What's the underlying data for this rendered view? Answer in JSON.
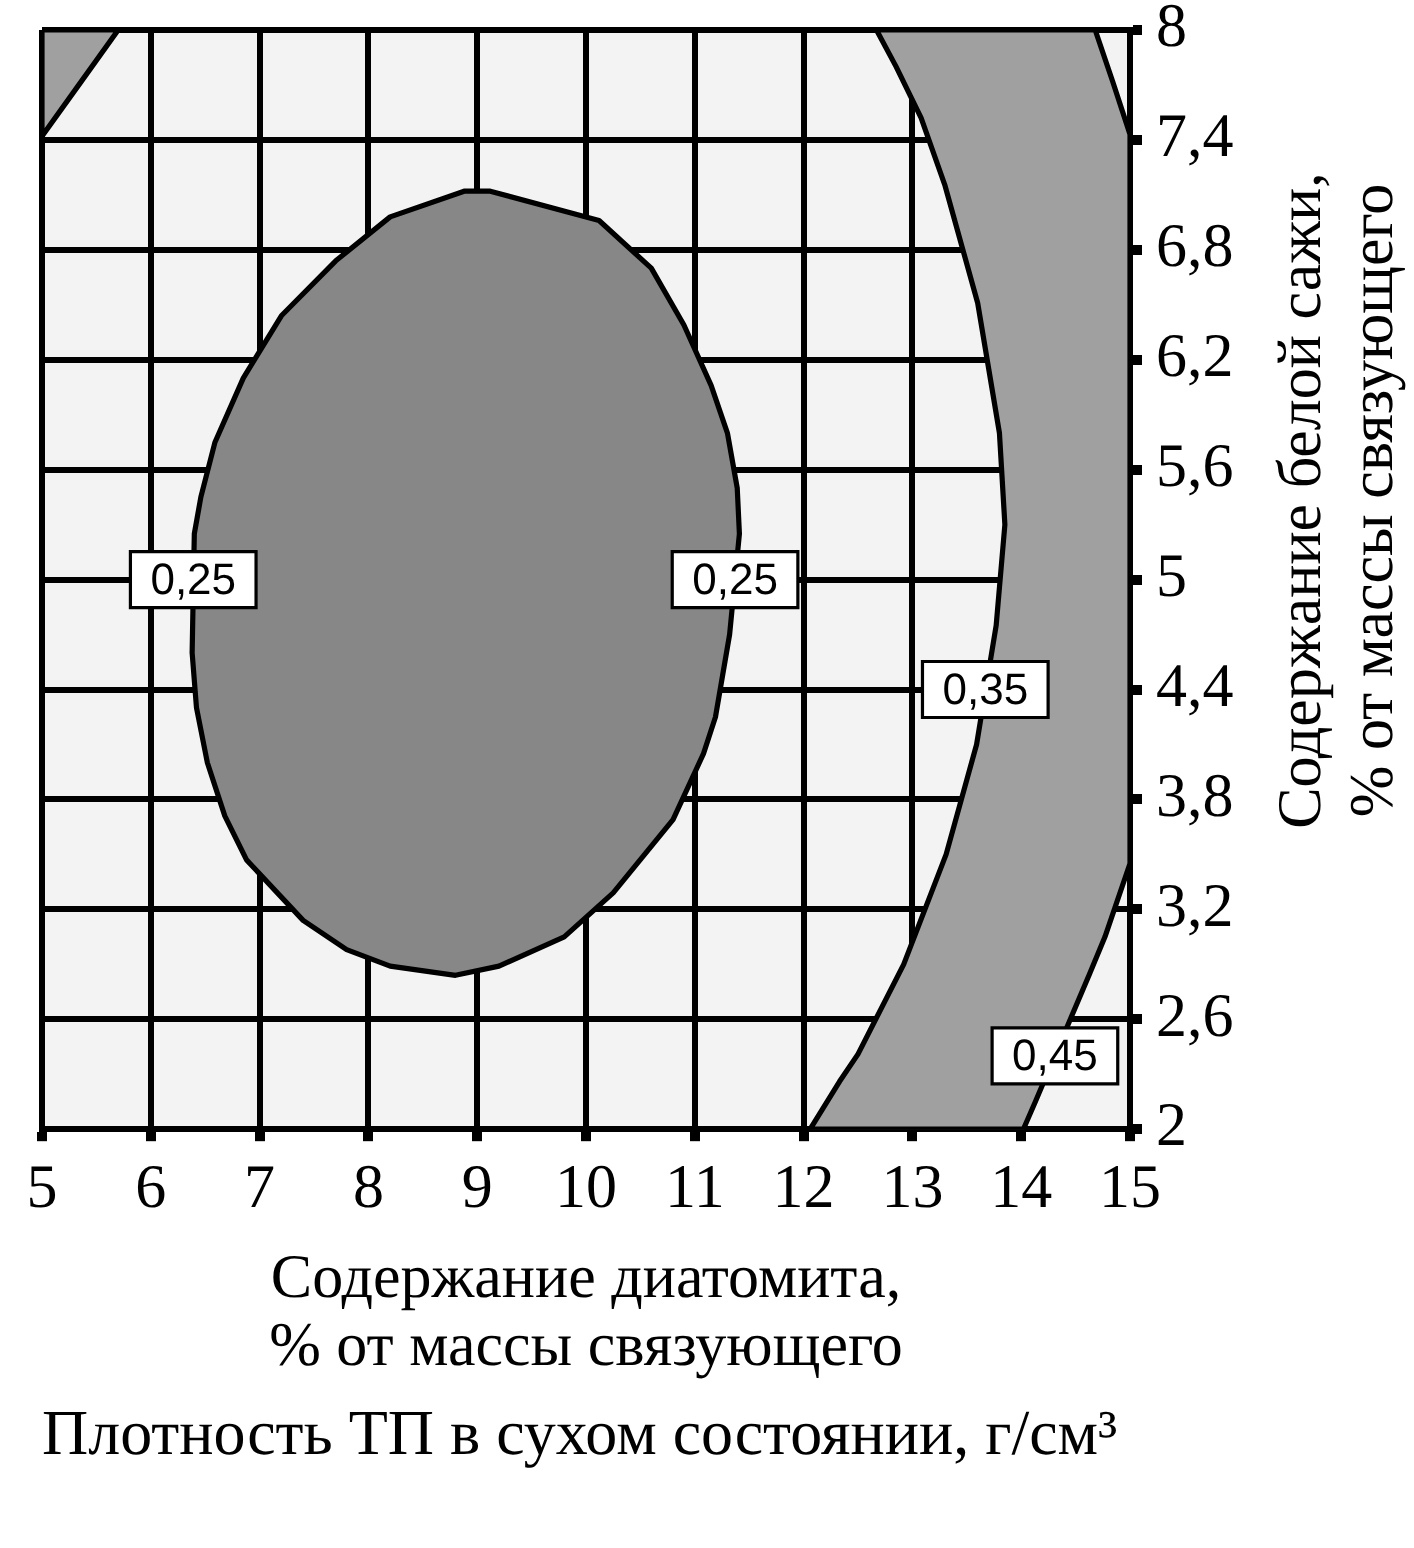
{
  "chart_data": {
    "type": "line",
    "title": "Плотность ТП в сухом состоянии, г/см³",
    "xlabel": "Содержание диатомита,\n% от массы связующего",
    "ylabel": "Содержание белой сажи,\n% от массы связующего",
    "xlim": [
      5,
      15
    ],
    "ylim": [
      2,
      8
    ],
    "xticks": [
      5,
      6,
      7,
      8,
      9,
      10,
      11,
      12,
      13,
      14,
      15
    ],
    "yticks": [
      2,
      {
        "value": 2.6,
        "label": "2,6"
      },
      {
        "value": 3.2,
        "label": "3,2"
      },
      {
        "value": 3.8,
        "label": "3,8"
      },
      {
        "value": 4.4,
        "label": "4,4"
      },
      5,
      {
        "value": 5.6,
        "label": "5,6"
      },
      {
        "value": 6.2,
        "label": "6,2"
      },
      {
        "value": 6.8,
        "label": "6,8"
      },
      {
        "value": 7.4,
        "label": "7,4"
      },
      8
    ],
    "grid": true,
    "series": [
      {
        "type": "area",
        "color": "#878787",
        "x": [
          8.88,
          9.12,
          10.12,
          10.6,
          10.9,
          11.15,
          11.3,
          11.39,
          11.41,
          11.32,
          11.19,
          11.08,
          10.8,
          10.25,
          9.8,
          9.2,
          8.8,
          8.2,
          7.8,
          7.4,
          6.88,
          6.68,
          6.52,
          6.42,
          6.38,
          6.4,
          6.46,
          6.59,
          6.85,
          7.2,
          7.7,
          8.2,
          8.88
        ],
        "values": [
          7.12,
          7.12,
          6.96,
          6.7,
          6.39,
          6.06,
          5.8,
          5.5,
          5.25,
          4.7,
          4.25,
          4.05,
          3.69,
          3.29,
          3.05,
          2.89,
          2.84,
          2.89,
          2.98,
          3.14,
          3.47,
          3.71,
          4.0,
          4.3,
          4.6,
          5.25,
          5.45,
          5.75,
          6.1,
          6.44,
          6.74,
          6.98,
          7.12
        ]
      },
      {
        "type": "area",
        "color": "#a0a0a0",
        "x": [
          12.67,
          12.85,
          13.08,
          13.3,
          13.6,
          13.8,
          13.85,
          13.77,
          13.59,
          13.31,
          12.92,
          12.5,
          12.33,
          12.06,
          14.02,
          14.13,
          14.63,
          14.77,
          15,
          15,
          14.84,
          14.68,
          12.67
        ],
        "values": [
          8,
          7.8,
          7.52,
          7.15,
          6.51,
          5.8,
          5.3,
          4.75,
          4.1,
          3.5,
          2.9,
          2.41,
          2.26,
          2,
          2,
          2.15,
          2.85,
          3.05,
          3.45,
          7.43,
          7.72,
          8,
          8
        ]
      },
      {
        "type": "area",
        "color": "#a0a0a0",
        "x": [
          5,
          5.35,
          5.7,
          5,
          5
        ],
        "values": [
          7.42,
          7.71,
          8,
          8,
          7.42
        ]
      }
    ],
    "annotations": [
      {
        "text": "0,25",
        "x": 6.39,
        "y": 5
      },
      {
        "text": "0,25",
        "x": 11.37,
        "y": 5
      },
      {
        "text": "0,35",
        "x": 13.67,
        "y": 4.4
      },
      {
        "text": "0,45",
        "x": 14.31,
        "y": 2.4
      }
    ]
  }
}
